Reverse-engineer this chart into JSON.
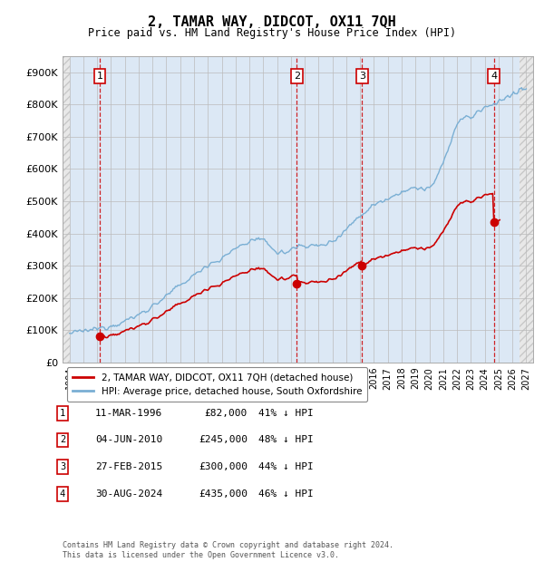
{
  "title": "2, TAMAR WAY, DIDCOT, OX11 7QH",
  "subtitle": "Price paid vs. HM Land Registry's House Price Index (HPI)",
  "sales": [
    {
      "date_num": 1996.19,
      "price": 82000,
      "label": "1",
      "date_str": "11-MAR-1996",
      "pct": "41% ↓ HPI"
    },
    {
      "date_num": 2010.42,
      "price": 245000,
      "label": "2",
      "date_str": "04-JUN-2010",
      "pct": "48% ↓ HPI"
    },
    {
      "date_num": 2015.15,
      "price": 300000,
      "label": "3",
      "date_str": "27-FEB-2015",
      "pct": "44% ↓ HPI"
    },
    {
      "date_num": 2024.66,
      "price": 435000,
      "label": "4",
      "date_str": "30-AUG-2024",
      "pct": "46% ↓ HPI"
    }
  ],
  "sale_color": "#cc0000",
  "hpi_color": "#7aafd4",
  "vline_color": "#cc0000",
  "ylim": [
    0,
    950000
  ],
  "xlim": [
    1993.5,
    2027.5
  ],
  "yticks": [
    0,
    100000,
    200000,
    300000,
    400000,
    500000,
    600000,
    700000,
    800000,
    900000
  ],
  "ytick_labels": [
    "£0",
    "£100K",
    "£200K",
    "£300K",
    "£400K",
    "£500K",
    "£600K",
    "£700K",
    "£800K",
    "£900K"
  ],
  "xticks": [
    1994,
    1995,
    1996,
    1997,
    1998,
    1999,
    2000,
    2001,
    2002,
    2003,
    2004,
    2005,
    2006,
    2007,
    2008,
    2009,
    2010,
    2011,
    2012,
    2013,
    2014,
    2015,
    2016,
    2017,
    2018,
    2019,
    2020,
    2021,
    2022,
    2023,
    2024,
    2025,
    2026,
    2027
  ],
  "legend_line1": "2, TAMAR WAY, DIDCOT, OX11 7QH (detached house)",
  "legend_line2": "HPI: Average price, detached house, South Oxfordshire",
  "footer": "Contains HM Land Registry data © Crown copyright and database right 2024.\nThis data is licensed under the Open Government Licence v3.0.",
  "plot_bg_color": "#dce8f5",
  "hatch_color": "#c8c8c8",
  "hatch_bg": "#e8e8e8"
}
